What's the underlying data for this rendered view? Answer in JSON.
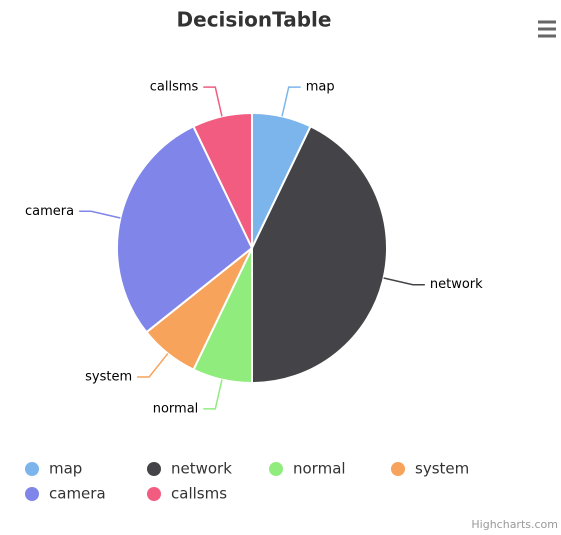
{
  "chart_data": {
    "type": "pie",
    "title": "DecisionTable",
    "categories": [
      "map",
      "network",
      "normal",
      "system",
      "camera",
      "callsms"
    ],
    "values": [
      1,
      6,
      1,
      1,
      4,
      1
    ],
    "colors": [
      "#7cb5ec",
      "#434348",
      "#90ed7d",
      "#f7a35c",
      "#8085e9",
      "#f15c80"
    ],
    "credits": "Highcharts.com"
  }
}
